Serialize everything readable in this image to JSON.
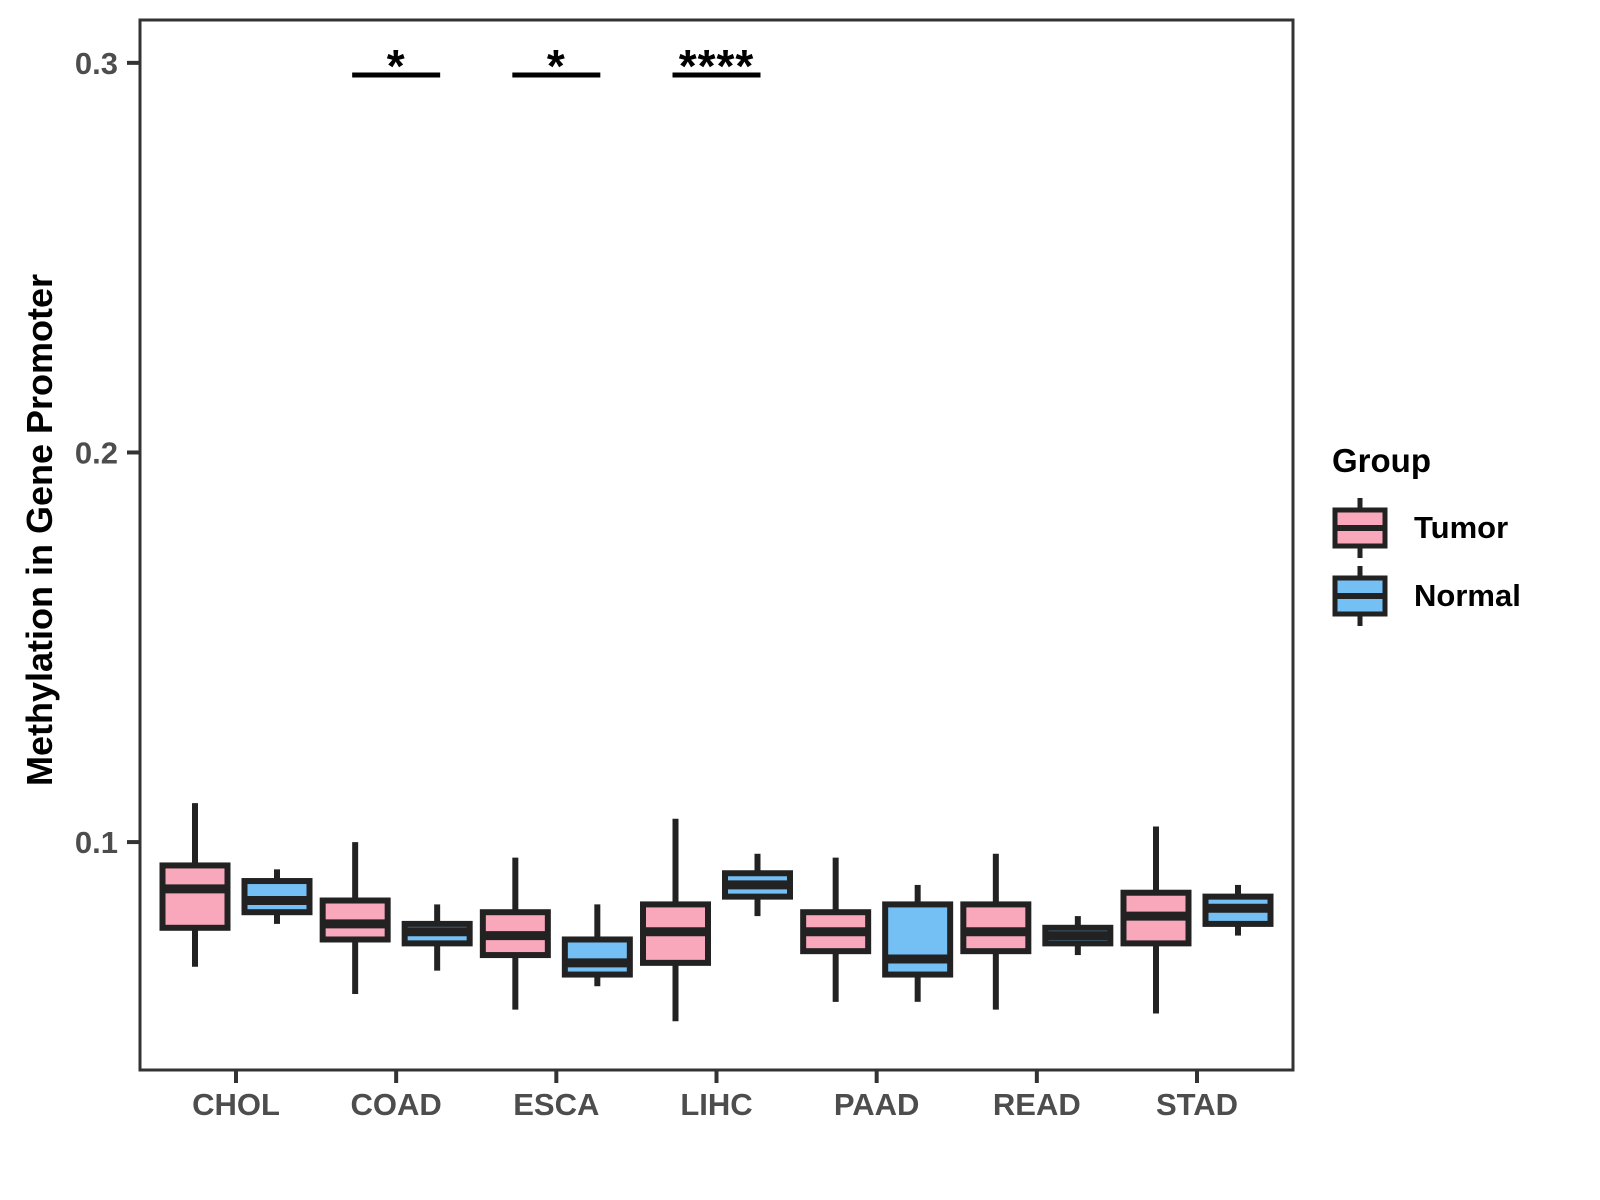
{
  "chart_data": {
    "type": "grouped_boxplot",
    "title": "",
    "xlabel": "",
    "ylabel": "Methylation in Gene Promoter",
    "categories": [
      "CHOL",
      "COAD",
      "ESCA",
      "LIHC",
      "PAAD",
      "READ",
      "STAD"
    ],
    "y_axis": {
      "ticks": [
        0.1,
        0.2,
        0.3
      ],
      "tick_labels": [
        "0.1",
        "0.2",
        "0.3"
      ],
      "range": [
        0.0415,
        0.311
      ],
      "grid": false
    },
    "legend": {
      "title": "Group",
      "position": "right",
      "entries": [
        {
          "label": "Tumor",
          "color": "#F9A8BC"
        },
        {
          "label": "Normal",
          "color": "#74BFF4"
        }
      ]
    },
    "series": [
      {
        "name": "Tumor",
        "color": "#F9A8BC",
        "boxes": [
          {
            "category": "CHOL",
            "whisker_low": 0.068,
            "q1": 0.078,
            "median": 0.088,
            "q3": 0.094,
            "whisker_high": 0.11
          },
          {
            "category": "COAD",
            "whisker_low": 0.061,
            "q1": 0.075,
            "median": 0.079,
            "q3": 0.085,
            "whisker_high": 0.1
          },
          {
            "category": "ESCA",
            "whisker_low": 0.057,
            "q1": 0.071,
            "median": 0.076,
            "q3": 0.082,
            "whisker_high": 0.096
          },
          {
            "category": "LIHC",
            "whisker_low": 0.054,
            "q1": 0.069,
            "median": 0.077,
            "q3": 0.084,
            "whisker_high": 0.106
          },
          {
            "category": "PAAD",
            "whisker_low": 0.059,
            "q1": 0.072,
            "median": 0.077,
            "q3": 0.082,
            "whisker_high": 0.096
          },
          {
            "category": "READ",
            "whisker_low": 0.057,
            "q1": 0.072,
            "median": 0.077,
            "q3": 0.084,
            "whisker_high": 0.097
          },
          {
            "category": "STAD",
            "whisker_low": 0.056,
            "q1": 0.074,
            "median": 0.081,
            "q3": 0.087,
            "whisker_high": 0.104
          }
        ]
      },
      {
        "name": "Normal",
        "color": "#74BFF4",
        "boxes": [
          {
            "category": "CHOL",
            "whisker_low": 0.079,
            "q1": 0.082,
            "median": 0.085,
            "q3": 0.09,
            "whisker_high": 0.093
          },
          {
            "category": "COAD",
            "whisker_low": 0.067,
            "q1": 0.074,
            "median": 0.077,
            "q3": 0.079,
            "whisker_high": 0.084
          },
          {
            "category": "ESCA",
            "whisker_low": 0.063,
            "q1": 0.066,
            "median": 0.069,
            "q3": 0.075,
            "whisker_high": 0.084
          },
          {
            "category": "LIHC",
            "whisker_low": 0.081,
            "q1": 0.086,
            "median": 0.089,
            "q3": 0.092,
            "whisker_high": 0.097
          },
          {
            "category": "PAAD",
            "whisker_low": 0.059,
            "q1": 0.066,
            "median": 0.07,
            "q3": 0.084,
            "whisker_high": 0.089
          },
          {
            "category": "READ",
            "whisker_low": 0.071,
            "q1": 0.074,
            "median": 0.076,
            "q3": 0.078,
            "whisker_high": 0.081
          },
          {
            "category": "STAD",
            "whisker_low": 0.076,
            "q1": 0.079,
            "median": 0.083,
            "q3": 0.086,
            "whisker_high": 0.089
          }
        ]
      }
    ],
    "significance": [
      {
        "category": "COAD",
        "label": "*"
      },
      {
        "category": "ESCA",
        "label": "*"
      },
      {
        "category": "LIHC",
        "label": "****"
      }
    ],
    "colors": {
      "box_border": "#222222",
      "median": "#222222",
      "whisker": "#222222",
      "panel_border": "#333333",
      "axis_text": "#4D4D4D",
      "axis_title": "#000000",
      "significance": "#000000",
      "background": "#FFFFFF"
    }
  }
}
